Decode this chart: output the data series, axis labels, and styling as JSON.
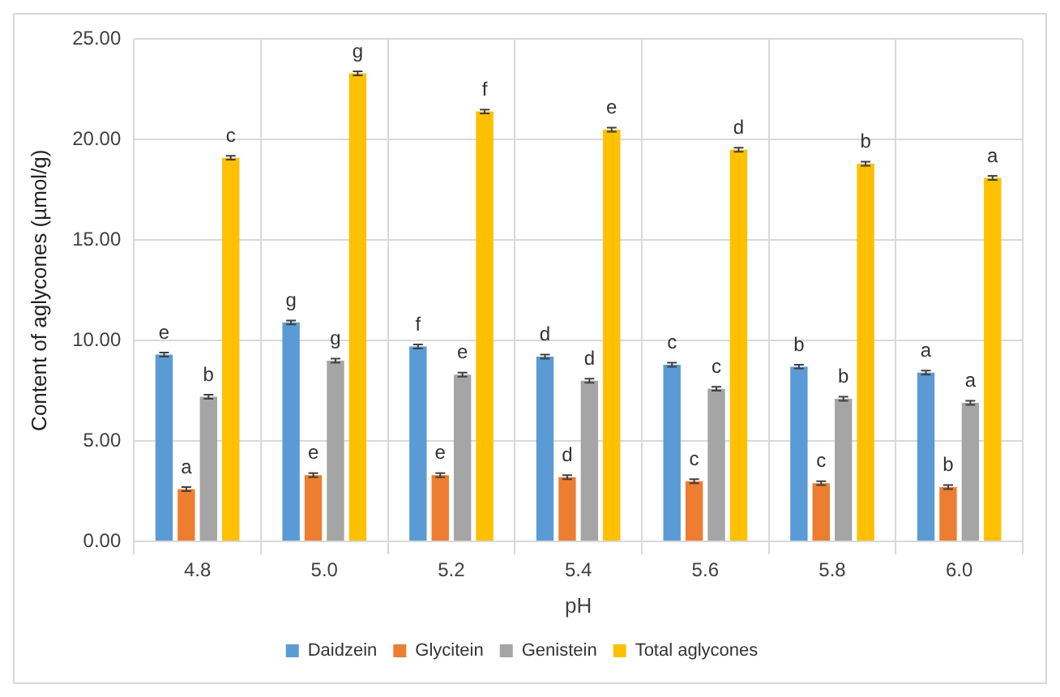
{
  "chart_data": {
    "type": "bar",
    "xlabel": "pH",
    "ylabel": "Content of aglycones (µmol/g)",
    "categories": [
      "4.8",
      "5.0",
      "5.2",
      "5.4",
      "5.6",
      "5.8",
      "6.0"
    ],
    "series": [
      {
        "name": "Daidzein",
        "color": "#5b9bd5",
        "values": [
          9.3,
          10.9,
          9.7,
          9.2,
          8.8,
          8.7,
          8.4
        ],
        "errors": [
          0.1,
          0.1,
          0.1,
          0.1,
          0.1,
          0.1,
          0.1
        ],
        "value_labels": [
          "e",
          "g",
          "f",
          "d",
          "c",
          "b",
          "a"
        ]
      },
      {
        "name": "Glycitein",
        "color": "#ed7d31",
        "values": [
          2.6,
          3.3,
          3.3,
          3.2,
          3.0,
          2.9,
          2.7
        ],
        "errors": [
          0.1,
          0.1,
          0.1,
          0.1,
          0.1,
          0.1,
          0.1
        ],
        "value_labels": [
          "a",
          "e",
          "e",
          "d",
          "c",
          "c",
          "b"
        ]
      },
      {
        "name": "Genistein",
        "color": "#a5a5a5",
        "values": [
          7.2,
          9.0,
          8.3,
          8.0,
          7.6,
          7.1,
          6.9
        ],
        "errors": [
          0.1,
          0.1,
          0.1,
          0.1,
          0.1,
          0.1,
          0.1
        ],
        "value_labels": [
          "b",
          "g",
          "e",
          "d",
          "c",
          "b",
          "a"
        ]
      },
      {
        "name": "Total aglycones",
        "color": "#ffc000",
        "values": [
          19.1,
          23.3,
          21.4,
          20.5,
          19.5,
          18.8,
          18.1
        ],
        "errors": [
          0.1,
          0.1,
          0.1,
          0.1,
          0.1,
          0.1,
          0.1
        ],
        "value_labels": [
          "c",
          "g",
          "f",
          "e",
          "d",
          "b",
          "a"
        ]
      }
    ],
    "ylim": [
      0,
      25
    ],
    "yticks": [
      {
        "value": 0,
        "label": "0.00"
      },
      {
        "value": 5,
        "label": "5.00"
      },
      {
        "value": 10,
        "label": "10.00"
      },
      {
        "value": 15,
        "label": "15.00"
      },
      {
        "value": 20,
        "label": "20.00"
      },
      {
        "value": 25,
        "label": "25.00"
      }
    ],
    "grid": true,
    "legend": "bottom"
  }
}
